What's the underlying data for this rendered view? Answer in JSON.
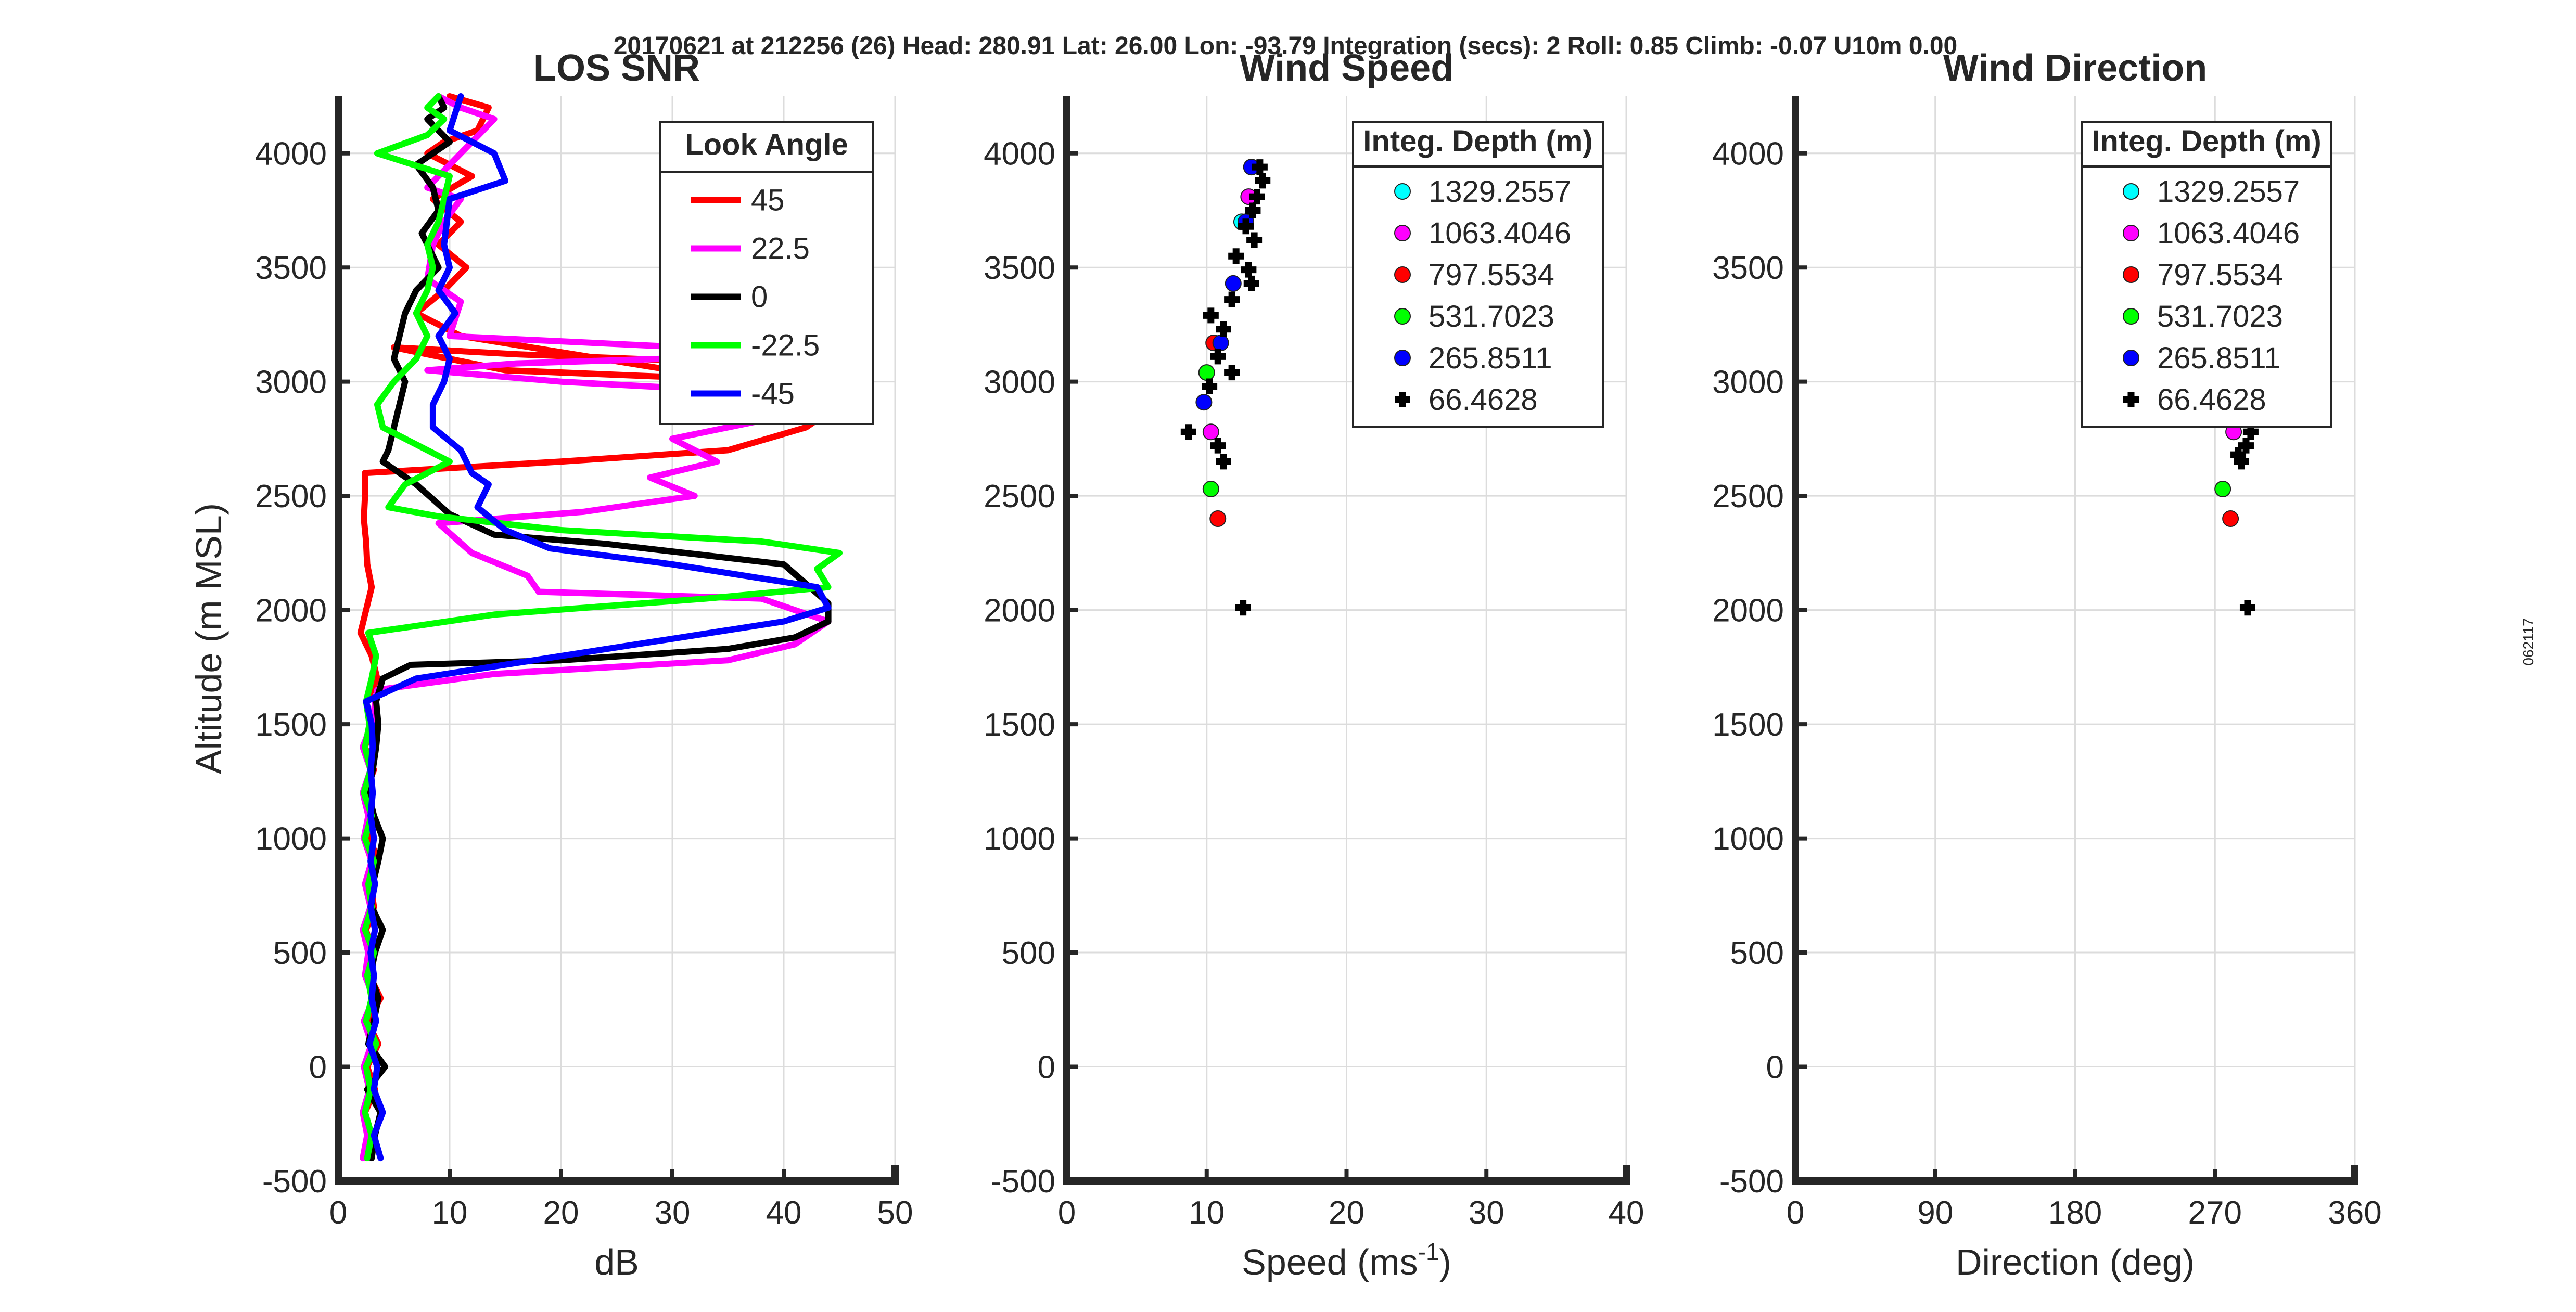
{
  "header": "20170621 at 212256 (26)  Head: 280.91  Lat: 26.00  Lon: -93.79  Integration (secs): 2  Roll: 0.85  Climb: -0.07  U10m 0.00",
  "side_label": "062117",
  "chart_data": [
    {
      "type": "line",
      "title": "LOS SNR",
      "xlabel": "dB",
      "ylabel": "Altitude (m MSL)",
      "xlim": [
        0,
        50
      ],
      "ylim": [
        -500,
        4250
      ],
      "xticks": [
        0,
        10,
        20,
        30,
        40,
        50
      ],
      "yticks": [
        -500,
        0,
        500,
        1000,
        1500,
        2000,
        2500,
        3000,
        3500,
        4000
      ],
      "grid": true,
      "legend_title": "Look Angle",
      "legend_position": "top-right",
      "series": [
        {
          "name": "45",
          "color": "#ff0000",
          "x": [
            2.5,
            3,
            2.4,
            3.3,
            2.6,
            3.6,
            2.6,
            3.8,
            2.8,
            3,
            2.5,
            3.2,
            2.9,
            3.6,
            2.8,
            3.2,
            2.4,
            3.2,
            2.4,
            3,
            2.5,
            3.5,
            3,
            2,
            2.5,
            3,
            2.6,
            2.5,
            2.3,
            2.4,
            2.4,
            20,
            35,
            42,
            45,
            40,
            15,
            5,
            16,
            32,
            38,
            30,
            11,
            7,
            9.5,
            11.5,
            9,
            11,
            8.5,
            12,
            8,
            9.5,
            12.5,
            13.5,
            10
          ],
          "y": [
            -400,
            -300,
            -200,
            -100,
            0,
            100,
            200,
            300,
            400,
            500,
            600,
            700,
            800,
            900,
            1000,
            1100,
            1200,
            1300,
            1400,
            1500,
            1600,
            1700,
            1800,
            1900,
            2000,
            2100,
            2200,
            2300,
            2400,
            2500,
            2600,
            2650,
            2700,
            2800,
            2900,
            3000,
            3050,
            3150,
            3120,
            3090,
            3070,
            3050,
            3200,
            3300,
            3400,
            3500,
            3600,
            3700,
            3800,
            3900,
            4000,
            4050,
            4100,
            4200,
            4250
          ]
        },
        {
          "name": "22.5",
          "color": "#ff00ff",
          "x": [
            2.2,
            2.6,
            2.2,
            2.8,
            2.3,
            3,
            2.3,
            3.2,
            2.4,
            2.7,
            2.2,
            2.9,
            2.4,
            3,
            2.3,
            2.7,
            2.2,
            2.9,
            2.2,
            3,
            3.5,
            14,
            35,
            41,
            44,
            38,
            18,
            17,
            12,
            9,
            22,
            32,
            28,
            34,
            30,
            40,
            39,
            20,
            8,
            16,
            29,
            40,
            10,
            11,
            8,
            8.5,
            9.5,
            11,
            8,
            10,
            12,
            14,
            11,
            9
          ],
          "y": [
            -400,
            -300,
            -200,
            -100,
            0,
            100,
            200,
            300,
            400,
            500,
            600,
            700,
            800,
            900,
            1000,
            1100,
            1200,
            1300,
            1400,
            1500,
            1650,
            1720,
            1780,
            1850,
            1950,
            2050,
            2080,
            2150,
            2250,
            2380,
            2430,
            2500,
            2580,
            2650,
            2750,
            2850,
            2950,
            3000,
            3050,
            3080,
            3100,
            3130,
            3200,
            3350,
            3450,
            3600,
            3700,
            3800,
            3850,
            3950,
            4050,
            4150,
            4200,
            4250
          ]
        },
        {
          "name": "0",
          "color": "#000000",
          "x": [
            3,
            3.3,
            3.8,
            2.6,
            4.2,
            2.7,
            3.2,
            3.6,
            2.9,
            3.3,
            4,
            3,
            3.1,
            3.6,
            4,
            3.2,
            2.7,
            3.1,
            3.4,
            3.6,
            3.4,
            4,
            6.5,
            20,
            35,
            41,
            44,
            44,
            40,
            24,
            14,
            10,
            7,
            4,
            4.5,
            5,
            5.5,
            6,
            5,
            5.5,
            6,
            7,
            9,
            8,
            7.5,
            9,
            8.5,
            7,
            8.5,
            10,
            8,
            9.5,
            9
          ],
          "y": [
            -400,
            -300,
            -200,
            -100,
            0,
            100,
            200,
            300,
            400,
            500,
            600,
            700,
            800,
            900,
            1000,
            1100,
            1200,
            1300,
            1400,
            1500,
            1600,
            1700,
            1760,
            1780,
            1830,
            1880,
            1950,
            2030,
            2200,
            2290,
            2330,
            2420,
            2550,
            2650,
            2700,
            2800,
            2900,
            3000,
            3100,
            3200,
            3300,
            3400,
            3500,
            3600,
            3650,
            3750,
            3850,
            3950,
            4000,
            4050,
            4150,
            4200,
            4250
          ]
        },
        {
          "name": "-22.5",
          "color": "#00ff00",
          "x": [
            2.6,
            3,
            2.4,
            2.9,
            2.5,
            3.4,
            2.5,
            3,
            2.6,
            3.2,
            2.4,
            3,
            2.7,
            3.2,
            2.4,
            3,
            2.3,
            2.9,
            2.4,
            2.8,
            2.5,
            3,
            3.4,
            2.7,
            14,
            33,
            44,
            43,
            45,
            38,
            20,
            9,
            4.5,
            6,
            10,
            4,
            3.5,
            5,
            7,
            8,
            7,
            8,
            8.5,
            8,
            9,
            9.5,
            10,
            3.5,
            8,
            9.5,
            8,
            9
          ],
          "y": [
            -400,
            -300,
            -200,
            -100,
            0,
            100,
            200,
            300,
            400,
            500,
            600,
            700,
            800,
            900,
            1000,
            1100,
            1200,
            1300,
            1400,
            1500,
            1600,
            1700,
            1800,
            1900,
            1980,
            2050,
            2100,
            2180,
            2250,
            2300,
            2350,
            2410,
            2450,
            2550,
            2650,
            2800,
            2900,
            3000,
            3100,
            3200,
            3300,
            3400,
            3500,
            3600,
            3700,
            3800,
            3900,
            4000,
            4080,
            4150,
            4200,
            4250
          ]
        },
        {
          "name": "-45",
          "color": "#0000ff",
          "x": [
            3.8,
            3.2,
            4,
            3.2,
            3.5,
            2.8,
            3.4,
            3,
            3.2,
            2.9,
            3.3,
            2.9,
            3.3,
            2.9,
            3.2,
            2.9,
            3.1,
            2.9,
            3.1,
            3,
            2.5,
            7,
            40,
            44,
            43,
            30,
            19,
            15,
            12.5,
            13.5,
            12,
            11,
            8.5,
            8.5,
            9.5,
            10,
            9,
            10.5,
            9,
            10,
            9.5,
            10,
            15,
            14,
            10,
            11
          ],
          "y": [
            -400,
            -300,
            -200,
            -100,
            0,
            100,
            200,
            300,
            400,
            500,
            600,
            700,
            800,
            900,
            1000,
            1100,
            1200,
            1300,
            1400,
            1500,
            1600,
            1700,
            1950,
            2010,
            2100,
            2200,
            2270,
            2350,
            2450,
            2550,
            2600,
            2700,
            2800,
            2900,
            3000,
            3100,
            3200,
            3300,
            3400,
            3500,
            3600,
            3800,
            3880,
            4000,
            4100,
            4250
          ]
        }
      ]
    },
    {
      "type": "scatter",
      "title": "Wind Speed",
      "xlabel": "Speed (ms",
      "xlabel_sup": "-1",
      "xlabel_end": ")",
      "xlim": [
        0,
        40
      ],
      "ylim": [
        -500,
        4250
      ],
      "xticks": [
        0,
        10,
        20,
        30,
        40
      ],
      "yticks": [
        -500,
        0,
        500,
        1000,
        1500,
        2000,
        2500,
        3000,
        3500,
        4000
      ],
      "grid": true,
      "legend_title": "Integ. Depth (m)",
      "legend_position": "top-right",
      "series": [
        {
          "name": "1329.2557",
          "color": "#00ffff",
          "marker": "circle",
          "x": [
            12.5
          ],
          "y": [
            3700
          ]
        },
        {
          "name": "1063.4046",
          "color": "#ff00ff",
          "marker": "circle",
          "x": [
            13,
            10.3
          ],
          "y": [
            3810,
            2780
          ]
        },
        {
          "name": "797.5534",
          "color": "#ff0000",
          "marker": "circle",
          "x": [
            10.5,
            10.8
          ],
          "y": [
            3170,
            2400
          ]
        },
        {
          "name": "531.7023",
          "color": "#00ff00",
          "marker": "circle",
          "x": [
            10,
            10.3
          ],
          "y": [
            3040,
            2530
          ]
        },
        {
          "name": "265.8511",
          "color": "#0000ff",
          "marker": "circle",
          "x": [
            13.2,
            11.9,
            12.8,
            11,
            9.8
          ],
          "y": [
            3940,
            3430,
            3700,
            3170,
            2910
          ]
        },
        {
          "name": "66.4628",
          "color": "#000000",
          "marker": "plus",
          "x": [
            13.8,
            14,
            13.6,
            13.3,
            12.8,
            13.4,
            12.1,
            13,
            11.8,
            13.2,
            10.3,
            11.2,
            10.8,
            11.8,
            10.2,
            8.7,
            10.8,
            11.2,
            12.6
          ],
          "y": [
            3940,
            3880,
            3810,
            3750,
            3680,
            3620,
            3550,
            3490,
            3360,
            3430,
            3290,
            3230,
            3110,
            3040,
            2980,
            2780,
            2720,
            2650,
            2010
          ]
        }
      ]
    },
    {
      "type": "scatter",
      "title": "Wind Direction",
      "xlabel": "Direction (deg)",
      "xlim": [
        0,
        360
      ],
      "ylim": [
        -500,
        4250
      ],
      "xticks": [
        0,
        90,
        180,
        270,
        360
      ],
      "yticks": [
        -500,
        0,
        500,
        1000,
        1500,
        2000,
        2500,
        3000,
        3500,
        4000
      ],
      "grid": true,
      "legend_title": "Integ. Depth (m)",
      "legend_position": "top-right",
      "series": [
        {
          "name": "1329.2557",
          "color": "#00ffff",
          "marker": "circle",
          "x": [],
          "y": []
        },
        {
          "name": "1063.4046",
          "color": "#ff00ff",
          "marker": "circle",
          "x": [
            282
          ],
          "y": [
            2780
          ]
        },
        {
          "name": "797.5534",
          "color": "#ff0000",
          "marker": "circle",
          "x": [
            280
          ],
          "y": [
            2400
          ]
        },
        {
          "name": "531.7023",
          "color": "#00ff00",
          "marker": "circle",
          "x": [
            275
          ],
          "y": [
            2530
          ]
        },
        {
          "name": "265.8511",
          "color": "#0000ff",
          "marker": "circle",
          "x": [],
          "y": []
        },
        {
          "name": "66.4628",
          "color": "#000000",
          "marker": "plus",
          "x": [
            293,
            290,
            287,
            285,
            291
          ],
          "y": [
            2780,
            2720,
            2650,
            2680,
            2010
          ]
        }
      ]
    }
  ]
}
